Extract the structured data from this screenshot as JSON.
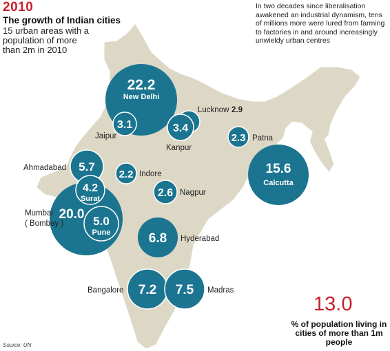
{
  "header": {
    "year": "2010",
    "title": "The growth of Indian cities",
    "subtitle": "15 urban areas with a population of more than 2m in 2010"
  },
  "intro": "In two decades since liberalisation awakened an industrial dynamism, tens of millions more were lured from farming to factories in and around increasingly unwieldy urban centres",
  "stat": {
    "value": "13.0",
    "label": "% of population living in cities of more than 1m people"
  },
  "source": "Source: UN",
  "colors": {
    "bubble": "#1c7590",
    "land": "#ddd8c6",
    "accent": "#c8202a"
  },
  "cities": [
    {
      "id": "new-delhi",
      "value": "22.2",
      "name": "New Delhi"
    },
    {
      "id": "jaipur",
      "value": "3.1",
      "name": "Jaipur"
    },
    {
      "id": "lucknow",
      "value": "2.9",
      "name": "Lucknow"
    },
    {
      "id": "kanpur",
      "value": "3.4",
      "name": "Kanpur"
    },
    {
      "id": "patna",
      "value": "2.3",
      "name": "Patna"
    },
    {
      "id": "calcutta",
      "value": "15.6",
      "name": "Calcutta"
    },
    {
      "id": "ahmadabad",
      "value": "5.7",
      "name": "Ahmadabad"
    },
    {
      "id": "indore",
      "value": "2.2",
      "name": "Indore"
    },
    {
      "id": "surat",
      "value": "4.2",
      "name": "Surat"
    },
    {
      "id": "nagpur",
      "value": "2.6",
      "name": "Nagpur"
    },
    {
      "id": "mumbai",
      "value": "20.0",
      "name": "Mumbai",
      "name2": "( Bombay )"
    },
    {
      "id": "pune",
      "value": "5.0",
      "name": "Pune"
    },
    {
      "id": "hyderabad",
      "value": "6.8",
      "name": "Hyderabad"
    },
    {
      "id": "bangalore",
      "value": "7.2",
      "name": "Bangalore"
    },
    {
      "id": "madras",
      "value": "7.5",
      "name": "Madras"
    }
  ]
}
